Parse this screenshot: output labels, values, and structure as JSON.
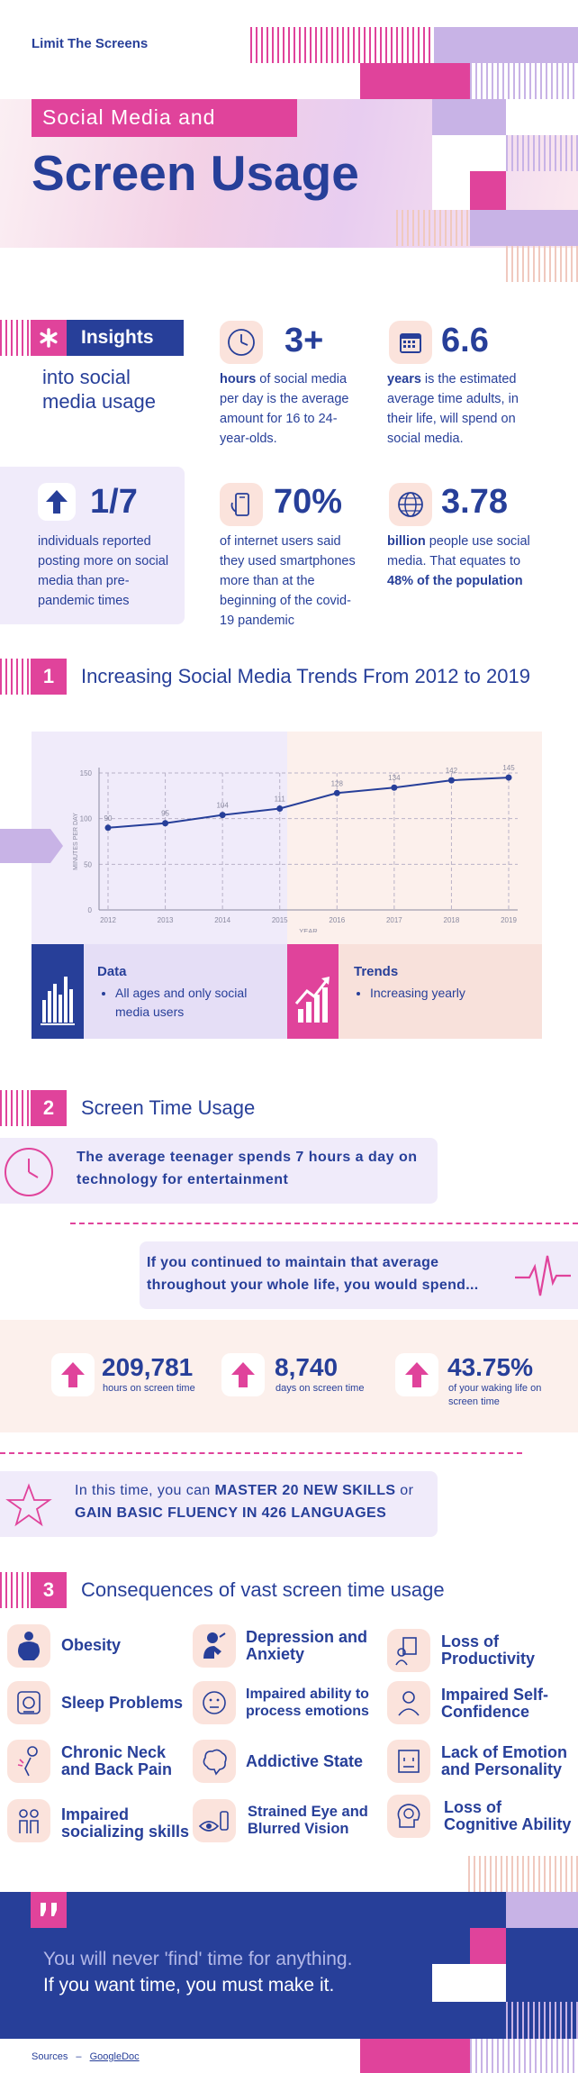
{
  "header": {
    "brand": "Limit The Screens",
    "tag": "Social Media and",
    "title": "Screen Usage"
  },
  "insights": {
    "label": "Insights",
    "subtitle": "into social media usage",
    "stats": [
      {
        "value": "3+",
        "bold": "hours",
        "text": " of social media per day is the average amount for 16 to 24-year-olds.",
        "icon": "clock-icon"
      },
      {
        "value": "6.6",
        "bold": "years",
        "text": " is the estimated average time adults, in their life, will spend on social media.",
        "icon": "calendar-icon"
      },
      {
        "value": "1/7",
        "bold": "",
        "text": "individuals reported posting more on social media than pre-pandemic times",
        "icon": "arrow-up-icon"
      },
      {
        "value": "70%",
        "bold": "",
        "text": "of internet users said they used smartphones more than at the beginning of the covid-19 pandemic",
        "icon": "phone-icon"
      },
      {
        "value": "3.78",
        "bold": "billion",
        "text": " people use social media. That equates to ",
        "bold2": "48% of the population",
        "icon": "globe-icon"
      }
    ]
  },
  "section1": {
    "number": "1",
    "title": "Increasing Social Media Trends From 2012 to 2019",
    "data_title": "Data",
    "data_items": [
      "All ages and only social media users"
    ],
    "trends_title": "Trends",
    "trends_items": [
      "Increasing yearly"
    ]
  },
  "chart_data": {
    "type": "line",
    "x": [
      "2012",
      "2013",
      "2014",
      "2015",
      "2016",
      "2017",
      "2018",
      "2019"
    ],
    "series": [
      {
        "values": [
          90,
          95,
          104,
          111,
          128,
          134,
          142,
          145
        ]
      }
    ],
    "xlabel": "YEAR",
    "ylabel": "MINUTES PER DAY",
    "ylim": [
      0,
      150
    ],
    "yticks": [
      0,
      50,
      100,
      150
    ],
    "grid": true
  },
  "section2": {
    "number": "2",
    "title": "Screen Time Usage",
    "callout1": "The average teenager spends 7 hours a day on technology for entertainment",
    "callout2": "If you continued to maintain that average throughout your whole life, you would spend...",
    "stats": [
      {
        "value": "209,781",
        "label": "hours on screen time"
      },
      {
        "value": "8,740",
        "label": "days on screen time"
      },
      {
        "value": "43.75%",
        "label": "of your waking life on screen time"
      }
    ],
    "master_prefix": "In this time, you can ",
    "master_bold1": "MASTER 20 NEW SKILLS",
    "master_mid": " or ",
    "master_bold2": "GAIN BASIC FLUENCY IN 426 LANGUAGES"
  },
  "section3": {
    "number": "3",
    "title": "Consequences of vast screen time usage",
    "items": [
      "Obesity",
      "Depression and Anxiety",
      "Loss of Productivity",
      "Sleep Problems",
      "Impaired ability to process emotions",
      "Impaired Self-Confidence",
      "Chronic Neck and Back Pain",
      "Addictive State",
      "Lack of Emotion and Personality",
      "Impaired socializing skills",
      "Strained Eye and Blurred Vision",
      "Loss of Cognitive Ability"
    ]
  },
  "quote": {
    "line1": "You will never 'find' time for anything.",
    "line2": "If you want time, you must make it."
  },
  "footer": {
    "sources_label": "Sources",
    "separator": "–",
    "link": "GoogleDoc"
  },
  "colors": {
    "navy": "#273f99",
    "pink": "#e0439b",
    "lavender": "#c8b3e6",
    "peach": "#fbe3dc"
  }
}
